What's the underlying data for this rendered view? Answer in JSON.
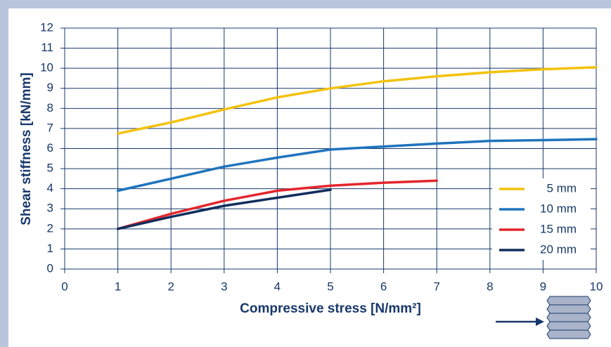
{
  "chart_data": {
    "type": "line",
    "x_label": "Compressive stress [N/mm²]",
    "y_label": "Shear stiffness [kN/mm]",
    "x": [
      1,
      2,
      3,
      4,
      5,
      6,
      7,
      8,
      9,
      10
    ],
    "series": [
      {
        "name": "5 mm",
        "color": "#f4c20d",
        "values": [
          6.75,
          7.3,
          7.95,
          8.55,
          9.0,
          9.35,
          9.6,
          9.8,
          9.95,
          10.05
        ]
      },
      {
        "name": "10 mm",
        "color": "#1f74bd",
        "values": [
          3.9,
          4.5,
          5.1,
          5.55,
          5.95,
          6.1,
          6.25,
          6.38,
          6.42,
          6.47
        ]
      },
      {
        "name": "15 mm",
        "color": "#e3262c",
        "values": [
          2.0,
          2.75,
          3.4,
          3.9,
          4.15,
          4.3,
          4.4,
          null,
          null,
          null
        ]
      },
      {
        "name": "20 mm",
        "color": "#112e5c",
        "values": [
          2.0,
          2.6,
          3.15,
          3.55,
          3.95,
          null,
          null,
          null,
          null,
          null
        ]
      }
    ],
    "xlim": [
      0,
      10
    ],
    "xticks": [
      0,
      1,
      2,
      3,
      4,
      5,
      6,
      7,
      8,
      9,
      10
    ],
    "ylim": [
      0,
      12
    ],
    "yticks": [
      0,
      1,
      2,
      3,
      4,
      5,
      6,
      7,
      8,
      9,
      10,
      11,
      12
    ],
    "grid": true,
    "legend": "lower right"
  }
}
